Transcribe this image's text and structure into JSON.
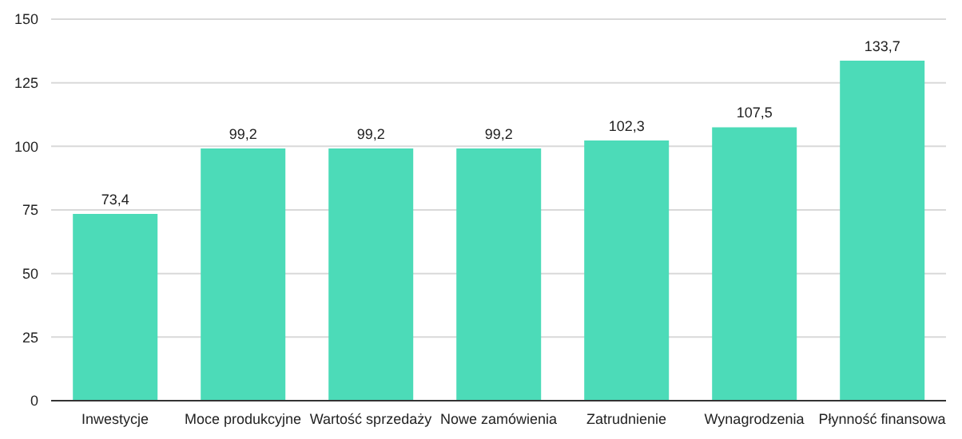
{
  "chart_data": {
    "type": "bar",
    "categories": [
      "Inwestycje",
      "Moce produkcyjne",
      "Wartość sprzedaży",
      "Nowe zamówienia",
      "Zatrudnienie",
      "Wynagrodzenia",
      "Płynność finansowa"
    ],
    "values": [
      73.4,
      99.2,
      99.2,
      99.2,
      102.3,
      107.5,
      133.7
    ],
    "value_labels": [
      "73,4",
      "99,2",
      "99,2",
      "99,2",
      "102,3",
      "107,5",
      "133,7"
    ],
    "color": "#4cdbb8",
    "ylim": [
      0,
      150
    ],
    "yticks": [
      0,
      25,
      50,
      75,
      100,
      125,
      150
    ],
    "grid": "y",
    "legend": false
  }
}
